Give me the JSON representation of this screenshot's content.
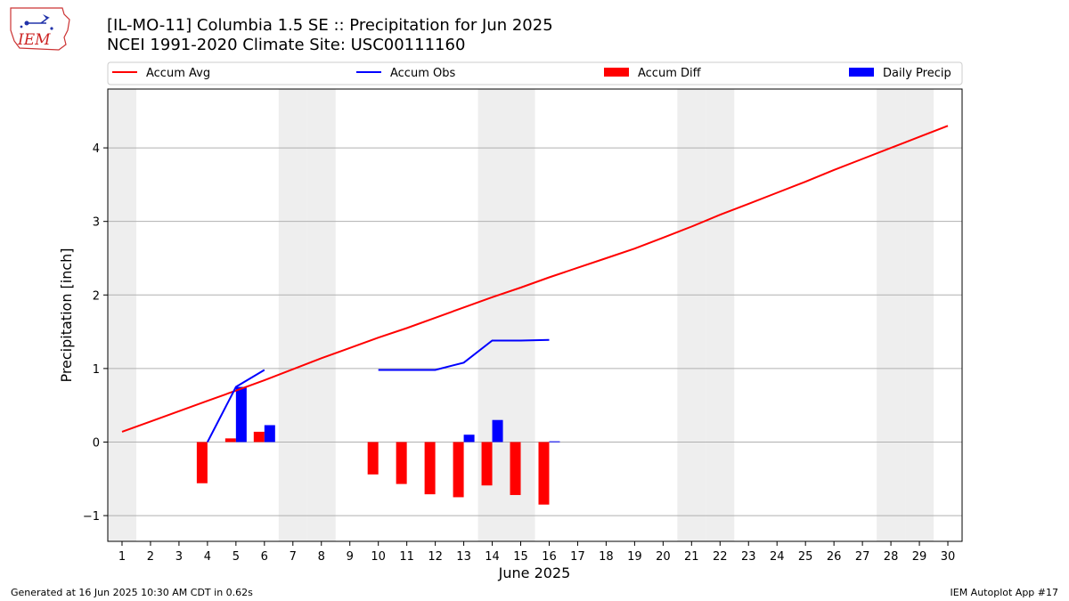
{
  "header": {
    "title_line1": "[IL-MO-11] Columbia 1.5 SE :: Precipitation for Jun 2025",
    "title_line2": "NCEI 1991-2020 Climate Site: USC00111160",
    "logo_text": "IEM"
  },
  "footer": {
    "left": "Generated at 16 Jun 2025 10:30 AM CDT in 0.62s",
    "right": "IEM Autoplot App #17"
  },
  "colors": {
    "avg": "#ff0000",
    "obs": "#0000ff",
    "diff": "#ff0000",
    "daily": "#0000ff",
    "weekend_shade": "#eeeeee",
    "grid": "#b0b0b0"
  },
  "chart_data": {
    "type": "bar",
    "xlabel": "June 2025",
    "ylabel": "Precipitation [inch]",
    "xlim": [
      0.5,
      30.5
    ],
    "ylim": [
      -1.35,
      4.8
    ],
    "yticks": [
      -1,
      0,
      1,
      2,
      3,
      4
    ],
    "ytick_labels": [
      "−1",
      "0",
      "1",
      "2",
      "3",
      "4"
    ],
    "xticks": [
      1,
      2,
      3,
      4,
      5,
      6,
      7,
      8,
      9,
      10,
      11,
      12,
      13,
      14,
      15,
      16,
      17,
      18,
      19,
      20,
      21,
      22,
      23,
      24,
      25,
      26,
      27,
      28,
      29,
      30
    ],
    "grid": "horizontal",
    "legend_placement": "top",
    "shaded_days": [
      1,
      7,
      8,
      14,
      15,
      21,
      22,
      28,
      29
    ],
    "series": [
      {
        "name": "Accum Avg",
        "kind": "line",
        "x": [
          1,
          2,
          3,
          4,
          5,
          6,
          7,
          8,
          9,
          10,
          11,
          12,
          13,
          14,
          15,
          16,
          17,
          18,
          19,
          20,
          21,
          22,
          23,
          24,
          25,
          26,
          27,
          28,
          29,
          30
        ],
        "values": [
          0.14,
          0.28,
          0.42,
          0.56,
          0.7,
          0.84,
          0.99,
          1.14,
          1.28,
          1.42,
          1.55,
          1.69,
          1.83,
          1.97,
          2.1,
          2.24,
          2.37,
          2.5,
          2.63,
          2.78,
          2.93,
          3.09,
          3.24,
          3.39,
          3.54,
          3.7,
          3.85,
          4.0,
          4.15,
          4.3
        ]
      },
      {
        "name": "Accum Obs",
        "kind": "line",
        "x": [
          4,
          5,
          6,
          7,
          8,
          9,
          10,
          11,
          12,
          13,
          14,
          15,
          16
        ],
        "values": [
          0.0,
          0.75,
          0.98,
          null,
          null,
          null,
          0.98,
          0.98,
          0.98,
          1.08,
          1.38,
          1.38,
          1.39
        ]
      },
      {
        "name": "Accum Diff",
        "kind": "bar",
        "x": [
          4,
          5,
          6,
          10,
          11,
          12,
          13,
          14,
          15,
          16
        ],
        "values": [
          -0.56,
          0.05,
          0.14,
          -0.44,
          -0.57,
          -0.71,
          -0.75,
          -0.59,
          -0.72,
          -0.85
        ]
      },
      {
        "name": "Daily Precip",
        "kind": "bar",
        "x": [
          5,
          6,
          13,
          14,
          16
        ],
        "values": [
          0.75,
          0.23,
          0.1,
          0.3,
          0.01
        ]
      }
    ]
  }
}
